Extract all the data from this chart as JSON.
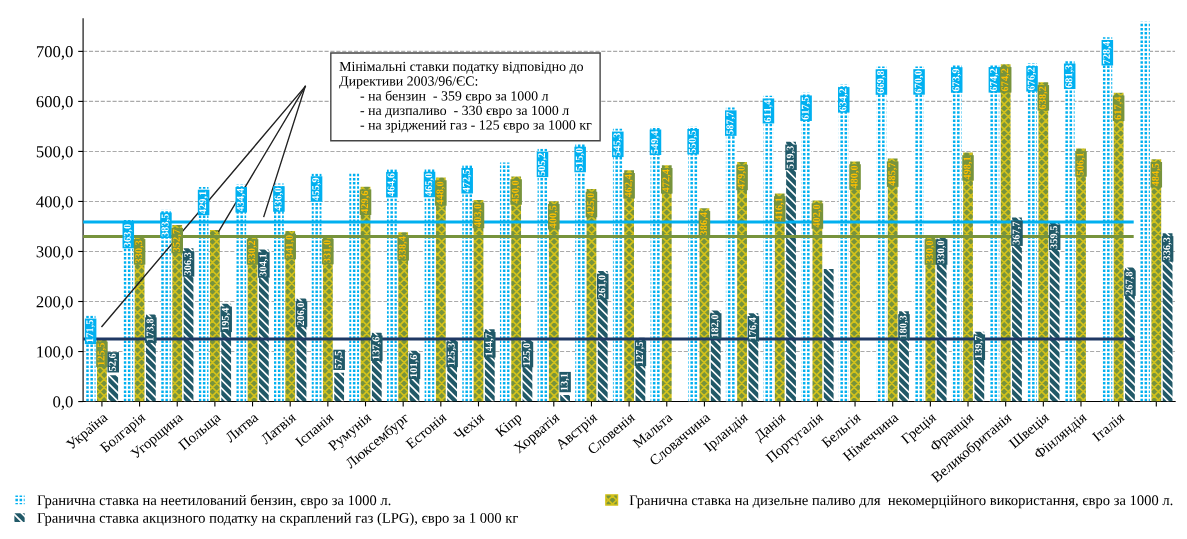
{
  "chart_data": {
    "type": "bar",
    "categories": [
      "Україна",
      "Болгарія",
      "Угорщина",
      "Польща",
      "Литва",
      "Латвія",
      "Іспанія",
      "Румунія",
      "Люксембург",
      "Естонія",
      "Чехія",
      "Кіпр",
      "Хорватія",
      "Австрія",
      "Словенія",
      "Мальта",
      "Словаччина",
      "Ірландія",
      "Данія",
      "Португалія",
      "Бельгія",
      "Німеччина",
      "Греція",
      "Франція",
      "Великобританія",
      "Швеція",
      "Фінляндія",
      "Італія",
      null
    ],
    "series": [
      {
        "name": "Гранична ставка на неетилований бензин, євро за 1000 л.",
        "color": "#00b0f0",
        "values": [
          171.5,
          363.0,
          383.5,
          429.1,
          434.4,
          436.0,
          455.9,
          459,
          464.6,
          465.0,
          472.5,
          478,
          505.2,
          515.0,
          545.3,
          549.4,
          550.5,
          587.7,
          611.4,
          617.5,
          634.2,
          669.8,
          670.0,
          673.9,
          674.2,
          676.2,
          681.3,
          728.4,
          759
        ],
        "value_labels": [
          "171,5",
          "363,0",
          "383,5",
          "429,1",
          "434,4",
          "436,0",
          "455,9",
          null,
          "464,6",
          "465,0",
          "472,5",
          null,
          "505,2",
          "515,0",
          "545,3",
          "549,4",
          "550,5",
          "587,7",
          "611,4",
          "617,5",
          "634,2",
          "669,8",
          "670,0",
          "673,9",
          "674,2",
          "676,2",
          "681,3",
          "728,4",
          null
        ]
      },
      {
        "name": "Гранична ставка на дизельне паливо для  некомерційного використання, євро за 1000 л.",
        "color": "#77933c",
        "values": [
          125.5,
          330.3,
          352.7,
          343,
          330.2,
          341.0,
          331.0,
          429.6,
          338.4,
          448.0,
          403.0,
          450.0,
          400.5,
          425.0,
          462.4,
          472.4,
          386.4,
          479.0,
          416.1,
          402.0,
          480.0,
          485.7,
          330.0,
          498.1,
          674.2,
          638.2,
          506.1,
          617.4,
          484.5
        ],
        "value_labels": [
          "125,5",
          "330,3",
          "352,7",
          null,
          "330,2",
          "341,0",
          "331,0",
          "429,6",
          "338,4",
          "448,0",
          "403,0",
          "450,0",
          "400,5",
          "425,0",
          "462,4",
          "472,4",
          "386,4",
          "479,0",
          "416,1",
          "402,0",
          "480,0",
          "485,7",
          "330,0",
          "498,1",
          "674,2",
          "638,2",
          "506,1",
          "617,4",
          "484,5"
        ]
      },
      {
        "name": "Гранична ставка акцизного податку на скраплений газ (LPG), євро за 1 000 кг",
        "color": "#215968",
        "values": [
          52.6,
          173.8,
          306.3,
          195.4,
          304.1,
          206.0,
          57.5,
          137.6,
          101.6,
          125.3,
          144.7,
          125.0,
          13.1,
          261.0,
          127.5,
          null,
          182.0,
          176.4,
          519.3,
          265,
          null,
          180.3,
          330.0,
          139.7,
          367.7,
          359.5,
          null,
          267.8,
          336.3
        ],
        "value_labels": [
          "52,6",
          "173,8",
          "306,3",
          "195,4",
          "304,1",
          "206,0",
          "57,5",
          "137,6",
          "101,6",
          "125,3",
          "144,7",
          "125,0",
          "13,1",
          "261,0",
          "127,5",
          null,
          "182,0",
          "176,4",
          "519,3",
          null,
          null,
          "180,3",
          "330,0",
          "139,7",
          "367,7",
          "359,5",
          null,
          "267,8",
          "336,3"
        ]
      }
    ],
    "ylim": [
      0,
      765
    ],
    "yticks": [
      {
        "value": 0,
        "label": "0,0"
      },
      {
        "value": 100,
        "label": "100,0"
      },
      {
        "value": 200,
        "label": "200,0"
      },
      {
        "value": 300,
        "label": "300,0"
      },
      {
        "value": 400,
        "label": "400,0"
      },
      {
        "value": 500,
        "label": "500,0"
      },
      {
        "value": 600,
        "label": "600,0"
      },
      {
        "value": 700,
        "label": "700,0"
      }
    ],
    "ref_lines": [
      {
        "axis": "y",
        "value": 359,
        "label": null,
        "color": "#00b0f0"
      },
      {
        "axis": "y",
        "value": 330,
        "label": null,
        "color": "#77933c"
      },
      {
        "axis": "y",
        "value": 125,
        "label": null,
        "color": "#1f3864"
      }
    ],
    "annotations": [
      "Мінімальні ставки податку відповідно до\nДирективи 2003/96/ЄС:\n      - на бензин  - 359 євро за 1000 л\n      - на дизпаливо  - 330 євро за 1000 л\n      - на зріджений газ - 125 євро за 1000 кг"
    ],
    "grid": "y",
    "legend": "bottom"
  }
}
